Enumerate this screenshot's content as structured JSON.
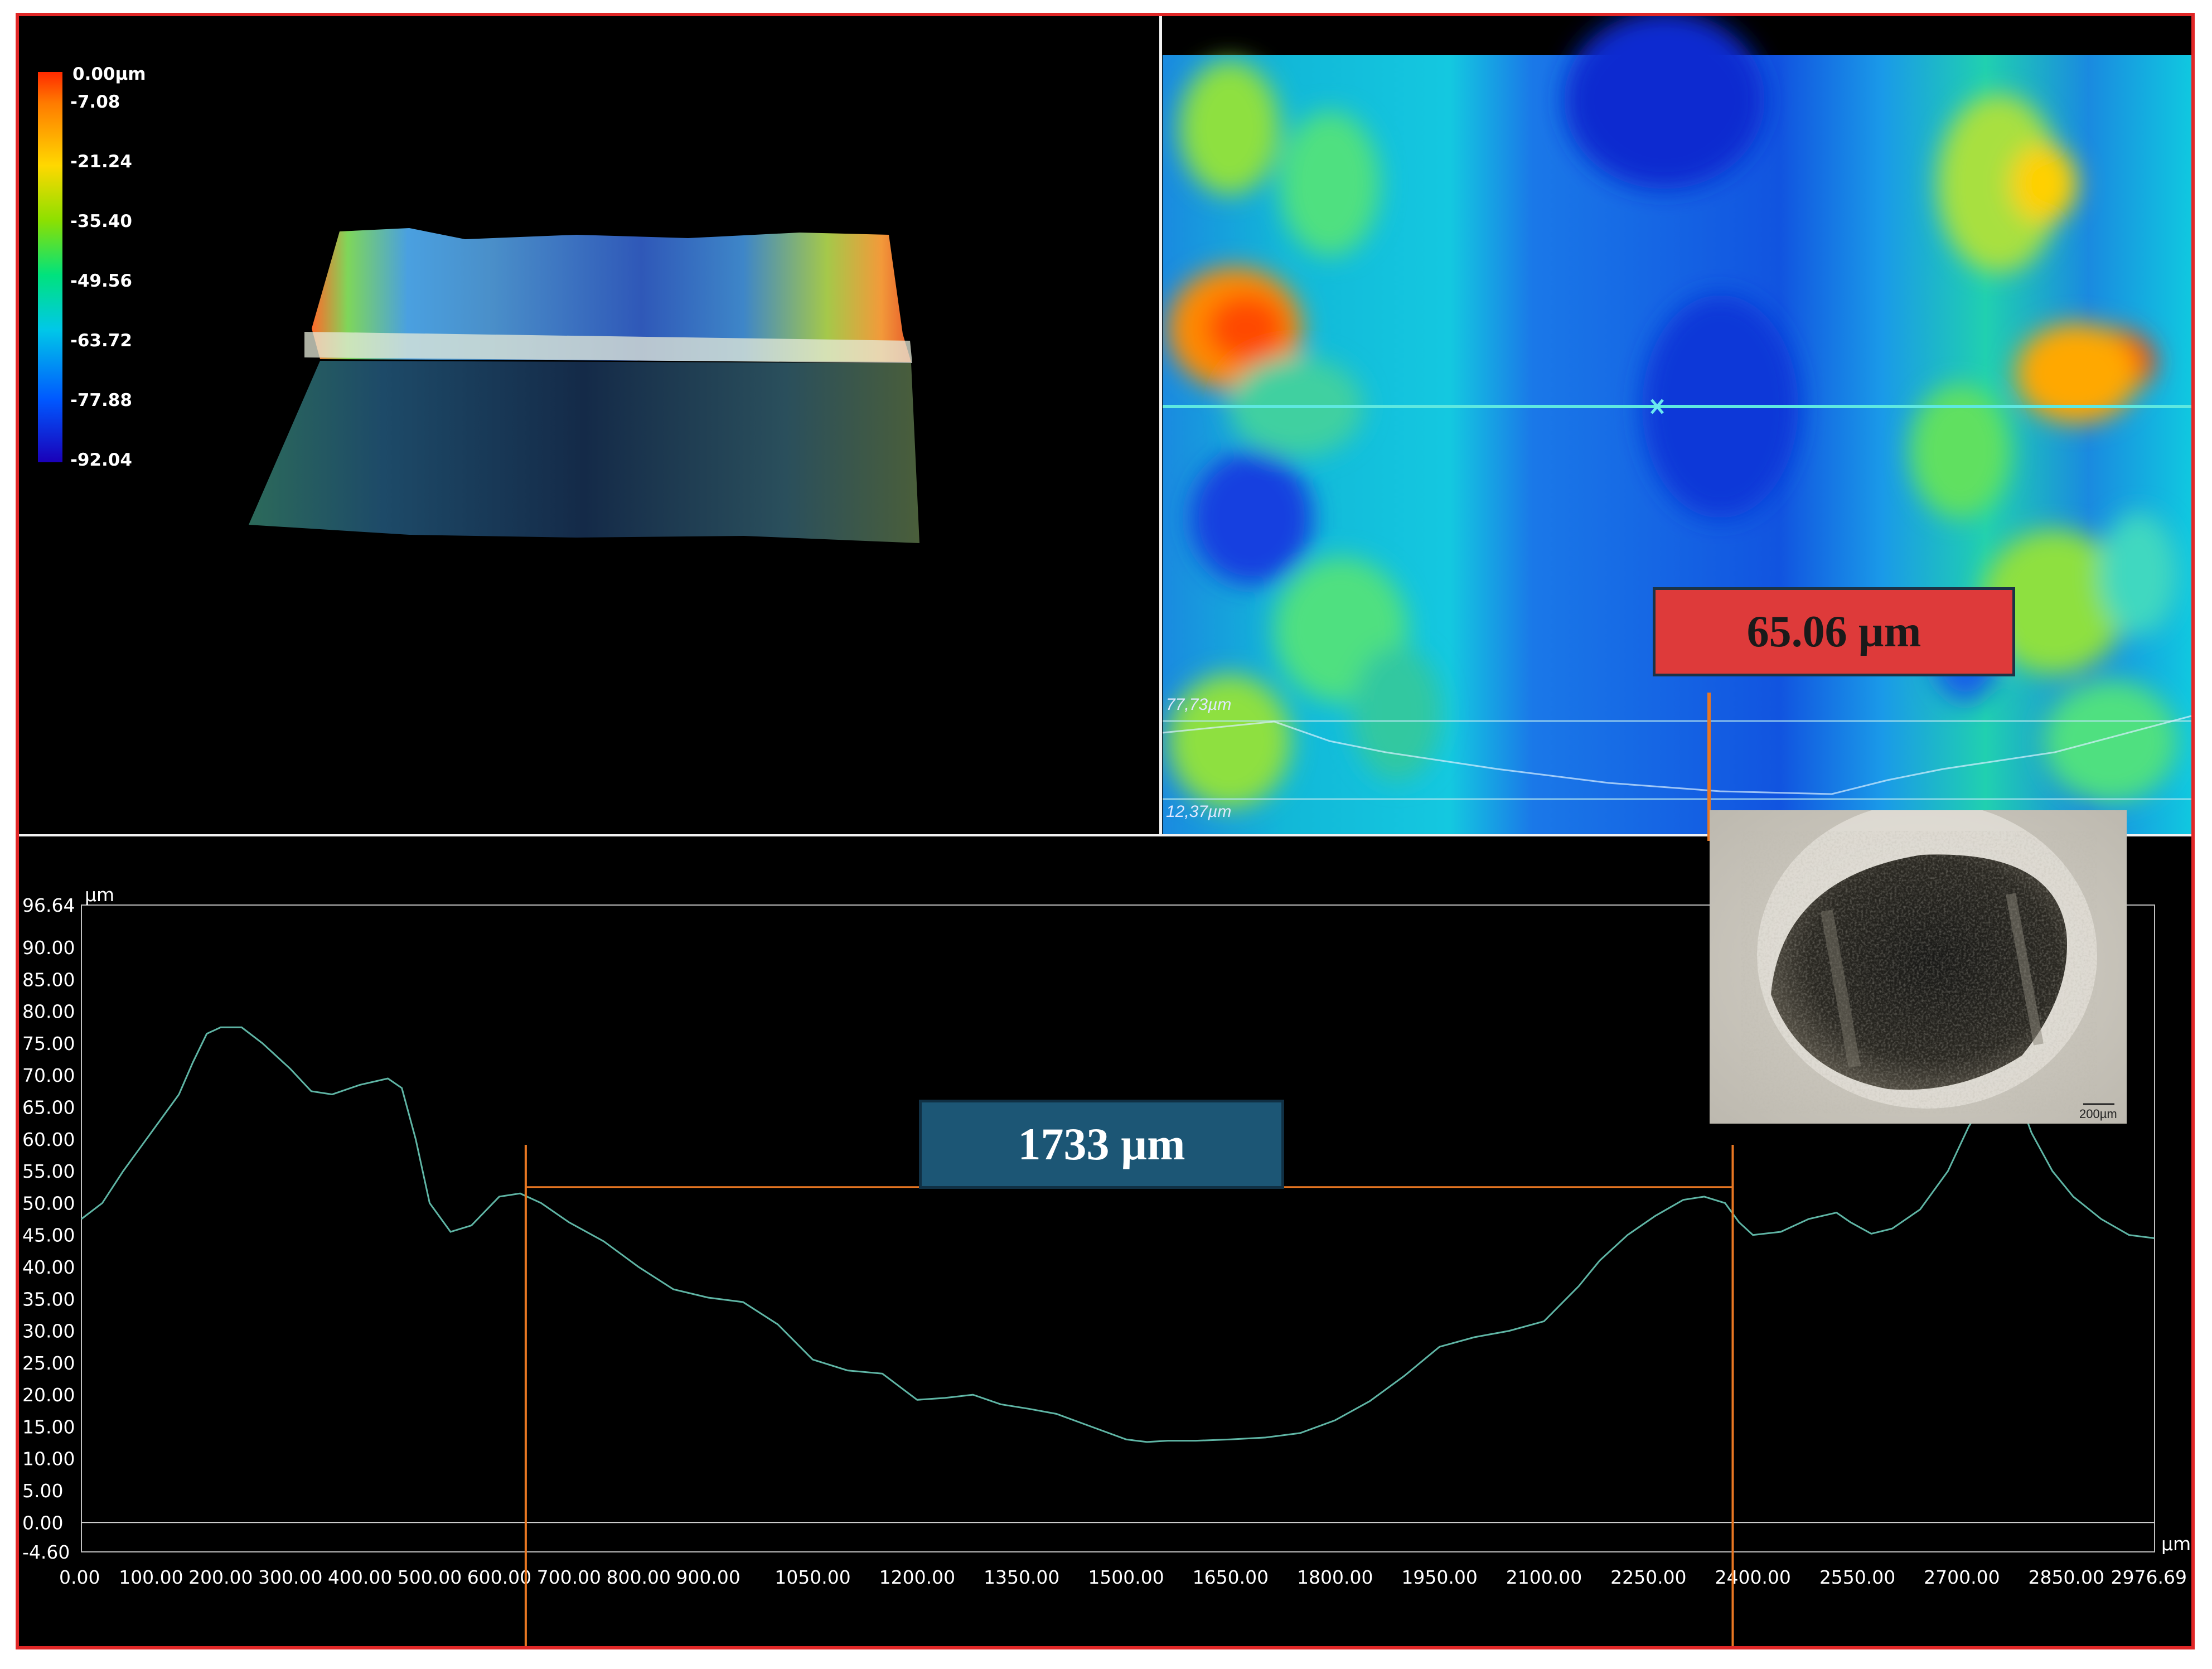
{
  "colorbar": {
    "unit": "µm",
    "labels": [
      "0.00µm",
      "-7.08",
      "-21.24",
      "-35.40",
      "-49.56",
      "-63.72",
      "-77.88",
      "-92.04"
    ],
    "colors": [
      "#ff2a00",
      "#ff7b00",
      "#ffd800",
      "#8de000",
      "#00e27d",
      "#00c8e8",
      "#0058ff",
      "#1a00b8"
    ]
  },
  "height_map": {
    "max_label": "77,73µm",
    "min_label": "12,37µm"
  },
  "callouts": {
    "depth": "65.06 µm",
    "width": "1733 µm"
  },
  "micrograph": {
    "scale_bar_label": "200µm"
  },
  "chart_data": {
    "type": "line",
    "xlabel": "µm",
    "ylabel": "µm",
    "xlim": [
      0,
      2976.69
    ],
    "ylim": [
      -4.6,
      96.64
    ],
    "x_ticks": [
      0,
      100,
      200,
      300,
      400,
      500,
      600,
      700,
      800,
      900,
      1050,
      1200,
      1350,
      1500,
      1650,
      1800,
      1950,
      2100,
      2250,
      2400,
      2550,
      2700,
      2850,
      2976.69
    ],
    "x_tick_labels": [
      "0.00",
      "100.00",
      "200.00",
      "300.00",
      "400.00",
      "500.00",
      "600.00",
      "700.00",
      "800.00",
      "900.00",
      "1050.00",
      "1200.00",
      "1350.00",
      "1500.00",
      "1650.00",
      "1800.00",
      "1950.00",
      "2100.00",
      "2250.00",
      "2400.00",
      "2550.00",
      "2700.00",
      "2850.00",
      "2976.69"
    ],
    "y_ticks": [
      96.64,
      90,
      85,
      80,
      75,
      70,
      65,
      60,
      55,
      50,
      45,
      40,
      35,
      30,
      25,
      20,
      15,
      10,
      5,
      0,
      -4.6
    ],
    "y_tick_labels": [
      "96.64",
      "90.00",
      "85.00",
      "80.00",
      "75.00",
      "70.00",
      "65.00",
      "60.00",
      "55.00",
      "50.00",
      "45.00",
      "40.00",
      "35.00",
      "30.00",
      "25.00",
      "20.00",
      "15.00",
      "10.00",
      "5.00",
      "0.00",
      "-4.60"
    ],
    "series": [
      {
        "color": "#5fb5a5",
        "x": [
          0,
          30,
          60,
          100,
          140,
          160,
          180,
          200,
          230,
          260,
          300,
          330,
          360,
          400,
          440,
          460,
          480,
          500,
          530,
          560,
          600,
          630,
          660,
          700,
          750,
          800,
          850,
          900,
          950,
          1000,
          1050,
          1100,
          1150,
          1200,
          1240,
          1280,
          1320,
          1360,
          1400,
          1450,
          1500,
          1530,
          1560,
          1600,
          1650,
          1700,
          1750,
          1800,
          1850,
          1900,
          1950,
          2000,
          2050,
          2100,
          2150,
          2180,
          2220,
          2260,
          2300,
          2330,
          2360,
          2380,
          2400,
          2440,
          2480,
          2520,
          2540,
          2570,
          2600,
          2640,
          2680,
          2710,
          2740,
          2760,
          2780,
          2800,
          2830,
          2860,
          2900,
          2940,
          2976
        ],
        "y": [
          47.5,
          50,
          55,
          61,
          67,
          72,
          76.5,
          77.5,
          77.5,
          75,
          71,
          67.5,
          67,
          68.5,
          69.5,
          68,
          60,
          50,
          45.5,
          46.5,
          51,
          51.5,
          50,
          47,
          44,
          40,
          36.5,
          35.2,
          34.5,
          31,
          25.5,
          23.8,
          23.3,
          19.2,
          19.5,
          20,
          18.5,
          17.8,
          17,
          15,
          13,
          12.6,
          12.8,
          12.8,
          13,
          13.3,
          14,
          16,
          19,
          23,
          27.5,
          29,
          30,
          31.5,
          37,
          41,
          45,
          48,
          50.5,
          51,
          50,
          47,
          45,
          45.5,
          47.5,
          48.5,
          47,
          45.2,
          46,
          49,
          55,
          62,
          67,
          68.5,
          67,
          61,
          55,
          51,
          47.5,
          45,
          44.5
        ]
      }
    ],
    "annotation": {
      "label": "1733 µm",
      "x_start": 638,
      "x_end": 2371,
      "y_level": 52.5
    }
  }
}
